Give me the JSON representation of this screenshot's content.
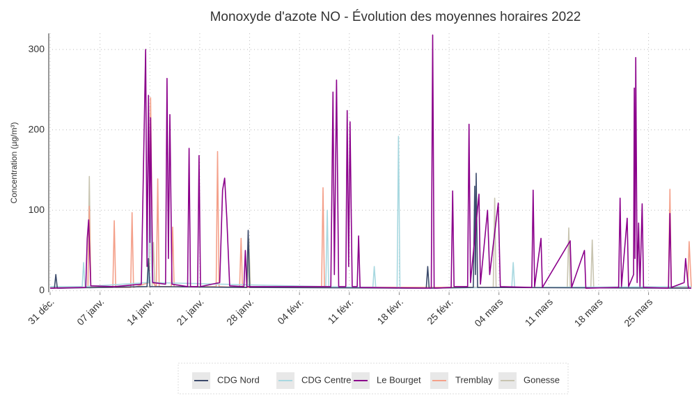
{
  "chart_data": {
    "type": "line",
    "title": "Monoxyde d'azote NO - Évolution des moyennes horaires 2022",
    "y_label": "Concentration (µg/m³)",
    "xlim": [
      -0.2,
      90.1
    ],
    "ylim": [
      -2,
      320
    ],
    "xticks": [
      {
        "value": 0,
        "label": "31 déc."
      },
      {
        "value": 7,
        "label": "07 janv."
      },
      {
        "value": 14,
        "label": "14 janv."
      },
      {
        "value": 21,
        "label": "21 janv."
      },
      {
        "value": 28,
        "label": "28 janv."
      },
      {
        "value": 35,
        "label": "04 févr."
      },
      {
        "value": 42,
        "label": "11 févr."
      },
      {
        "value": 49,
        "label": "18 févr."
      },
      {
        "value": 56,
        "label": "25 févr."
      },
      {
        "value": 63,
        "label": "04 mars"
      },
      {
        "value": 70,
        "label": "11 mars"
      },
      {
        "value": 77,
        "label": "18 mars"
      },
      {
        "value": 84,
        "label": "25 mars"
      }
    ],
    "yticks": [
      0,
      100,
      200,
      300
    ],
    "grid": true,
    "legend": "bottom",
    "series": [
      {
        "name": "CDG Nord",
        "color": "#3b4a6b",
        "x": [
          0,
          0.6,
          0.8,
          1.0,
          13.6,
          13.8,
          14.0,
          27.6,
          27.8,
          28.0,
          52.8,
          53.0,
          53.2,
          59.4,
          59.6,
          59.7,
          59.8,
          60.0,
          90
        ],
        "values": [
          3,
          3,
          20,
          3,
          5,
          40,
          5,
          4,
          75,
          4,
          3,
          30,
          3,
          4,
          130,
          20,
          146,
          4,
          3
        ]
      },
      {
        "name": "CDG Centre",
        "color": "#a8d8e0",
        "x": [
          0,
          4.5,
          4.7,
          4.9,
          13.8,
          14.0,
          14.3,
          38.7,
          38.9,
          39.1,
          45.3,
          45.5,
          45.7,
          48.7,
          48.9,
          49.1,
          64.8,
          65,
          65.2,
          90
        ],
        "values": [
          5,
          5,
          35,
          5,
          10,
          120,
          10,
          5,
          100,
          5,
          4,
          30,
          4,
          3,
          192,
          3,
          4,
          35,
          4,
          5
        ]
      },
      {
        "name": "Le Bourget",
        "color": "#8b008b",
        "x": [
          0,
          5,
          5.2,
          5.4,
          5.7,
          9,
          12.8,
          13.4,
          13.6,
          13.8,
          14.0,
          14.1,
          14.4,
          16.2,
          16.4,
          16.6,
          16.8,
          17.1,
          19.3,
          19.5,
          19.7,
          20.7,
          20.9,
          21.1,
          23.8,
          24.2,
          24.5,
          24.8,
          25.2,
          27.2,
          27.4,
          27.6,
          39.4,
          39.7,
          39.9,
          40.2,
          40.5,
          41.5,
          41.7,
          41.9,
          42.1,
          42.4,
          43.1,
          43.3,
          43.5,
          53.5,
          53.7,
          53.9,
          56.3,
          56.5,
          56.7,
          58.6,
          58.8,
          59.0,
          60.2,
          60.4,
          61.4,
          61.7,
          62.9,
          63.2,
          67.6,
          67.8,
          68.0,
          68.9,
          69.1,
          73,
          73.2,
          75,
          75.2,
          79.8,
          80,
          80.2,
          81,
          81.2,
          81.9,
          82.0,
          82.1,
          82.2,
          82.4,
          82.6,
          82.8,
          83.1,
          83.3,
          86.8,
          87,
          87.2,
          89,
          89.2,
          89.6,
          90
        ],
        "values": [
          3,
          4,
          65,
          88,
          6,
          5,
          8,
          300,
          30,
          243,
          60,
          215,
          10,
          8,
          264,
          40,
          219,
          8,
          5,
          177,
          5,
          5,
          168,
          5,
          10,
          125,
          140,
          90,
          6,
          5,
          50,
          5,
          5,
          247,
          20,
          262,
          5,
          5,
          224,
          30,
          210,
          5,
          5,
          68,
          4,
          3,
          318,
          3,
          4,
          124,
          5,
          5,
          207,
          10,
          120,
          8,
          100,
          20,
          109,
          5,
          4,
          125,
          5,
          65,
          4,
          62,
          4,
          50,
          3,
          4,
          115,
          5,
          90,
          5,
          20,
          252,
          40,
          290,
          10,
          84,
          5,
          108,
          4,
          3,
          96,
          4,
          10,
          40,
          3,
          3
        ]
      },
      {
        "name": "Tremblay",
        "color": "#f4a08a",
        "x": [
          0,
          5.3,
          5.5,
          5.7,
          8.8,
          9.0,
          9.2,
          11.3,
          11.5,
          11.7,
          13.9,
          14.1,
          14.4,
          14.9,
          15.1,
          15.3,
          17.0,
          17.2,
          17.4,
          23.3,
          23.5,
          23.7,
          26.6,
          26.8,
          27.0,
          38.1,
          38.3,
          38.5,
          86.8,
          87.0,
          87.2,
          89.5,
          89.7,
          90
        ],
        "values": [
          3,
          4,
          105,
          4,
          4,
          87,
          4,
          4,
          97,
          4,
          10,
          240,
          10,
          5,
          139,
          5,
          5,
          79,
          5,
          5,
          173,
          5,
          4,
          65,
          4,
          4,
          128,
          4,
          4,
          126,
          4,
          4,
          61,
          4
        ]
      },
      {
        "name": "Gonesse",
        "color": "#c8c4b0",
        "x": [
          0,
          5.3,
          5.5,
          5.7,
          14.3,
          14.5,
          14.7,
          27.7,
          27.9,
          28.1,
          62.2,
          62.4,
          62.6,
          72.6,
          72.8,
          73.0,
          75.9,
          76.1,
          76.3,
          90
        ],
        "values": [
          4,
          4,
          142,
          4,
          5,
          60,
          5,
          4,
          64,
          4,
          4,
          115,
          4,
          4,
          78,
          4,
          4,
          63,
          4,
          4
        ]
      }
    ]
  }
}
